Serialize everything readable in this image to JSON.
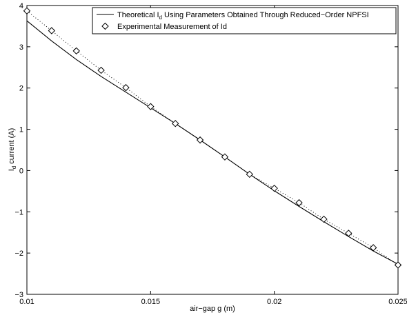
{
  "chart_data": {
    "type": "line",
    "xlabel": "air−gap g (m)",
    "ylabel_main": "I",
    "ylabel_sub": "d",
    "ylabel_rest": " current (A)",
    "xlim": [
      0.01,
      0.025
    ],
    "ylim": [
      -3,
      4
    ],
    "x_ticks": [
      0.01,
      0.015,
      0.02,
      0.025
    ],
    "x_tick_labels": [
      "0.01",
      "0.015",
      "0.02",
      "0.025"
    ],
    "y_ticks": [
      -3,
      -2,
      -1,
      0,
      1,
      2,
      3,
      4
    ],
    "y_tick_labels": [
      "−3",
      "−2",
      "−1",
      "0",
      "1",
      "2",
      "3",
      "4"
    ],
    "grid": false,
    "legend_position": "top-right",
    "series": [
      {
        "legend_main": "Theoretical I",
        "legend_sub": "d",
        "legend_rest": " Using Parameters Obtained Through Reduced−Order NPFSI",
        "style": "solid",
        "color": "#000000",
        "x": [
          0.01,
          0.011,
          0.012,
          0.013,
          0.014,
          0.015,
          0.016,
          0.017,
          0.018,
          0.019,
          0.02,
          0.021,
          0.022,
          0.023,
          0.024,
          0.025
        ],
        "y": [
          3.63,
          3.14,
          2.69,
          2.28,
          1.9,
          1.52,
          1.14,
          0.74,
          0.33,
          -0.09,
          -0.49,
          -0.87,
          -1.24,
          -1.6,
          -1.95,
          -2.27
        ]
      },
      {
        "legend_main": "Experimental Measurement of Id",
        "style": "dotted-with-diamonds",
        "color": "#000000",
        "x": [
          0.01,
          0.011,
          0.012,
          0.013,
          0.014,
          0.015,
          0.016,
          0.017,
          0.018,
          0.019,
          0.02,
          0.021,
          0.022,
          0.023,
          0.024,
          0.025
        ],
        "y": [
          3.87,
          3.39,
          2.9,
          2.43,
          2.01,
          1.55,
          1.14,
          0.74,
          0.33,
          -0.09,
          -0.43,
          -0.78,
          -1.18,
          -1.52,
          -1.87,
          -2.29
        ]
      }
    ]
  }
}
